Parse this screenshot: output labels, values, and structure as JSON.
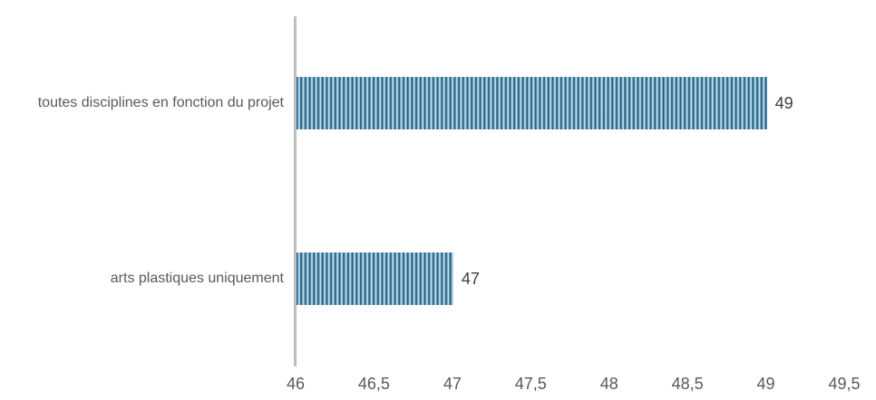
{
  "chart_data": {
    "type": "bar",
    "orientation": "horizontal",
    "title": "",
    "categories": [
      "toutes disciplines en fonction du projet",
      "arts plastiques uniquement"
    ],
    "values": [
      49,
      47
    ],
    "data_labels": [
      "49",
      "47"
    ],
    "xlim": [
      46,
      49.5
    ],
    "x_tick_step": 0.5,
    "x_ticks": [
      "46",
      "46,5",
      "47",
      "47,5",
      "48",
      "48,5",
      "49",
      "49,5"
    ],
    "grid": false,
    "legend": null,
    "decimal_separator": ",",
    "colors": {
      "bar_stripe_dark": "#1d5a7b",
      "bar_stripe_mid": "#9ec5de",
      "bar_stripe_light": "#d3e5f1",
      "axis_line": "#bfbfbf",
      "category_label": "#595959",
      "tick_label": "#595959",
      "data_label": "#3f3f3f",
      "background": "#ffffff"
    }
  }
}
